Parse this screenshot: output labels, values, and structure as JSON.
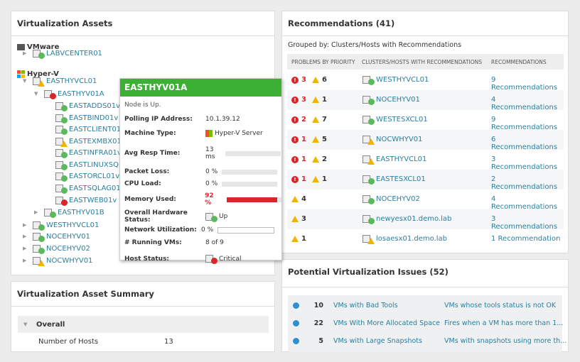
{
  "assets": {
    "title": "Virtualization Assets",
    "vmware": "VMware",
    "hyperv": "Hyper-V",
    "nodes": [
      {
        "label": "LABVCENTER01",
        "status": "up",
        "depth": 1,
        "caret": "right"
      },
      {
        "label": "EASTHYVCL01",
        "status": "warning",
        "depth": 1,
        "caret": "down"
      },
      {
        "label": "EASTHYV01A",
        "status": "critical",
        "depth": 2,
        "caret": "down"
      },
      {
        "label": "EASTADDS01v",
        "status": "up",
        "depth": 3
      },
      {
        "label": "EASTBIND01v",
        "status": "up",
        "depth": 3
      },
      {
        "label": "EASTCLIENT01v",
        "status": "up",
        "depth": 3
      },
      {
        "label": "EASTEXMBX01v",
        "status": "warning",
        "depth": 3
      },
      {
        "label": "EASTINFRA01v",
        "status": "up",
        "depth": 3
      },
      {
        "label": "EASTLINUXSQL0",
        "status": "up",
        "depth": 3
      },
      {
        "label": "EASTORCL01v",
        "status": "up",
        "depth": 3
      },
      {
        "label": "EASTSQLAG01v",
        "status": "up",
        "depth": 3
      },
      {
        "label": "EASTWEB01v",
        "status": "critical",
        "depth": 3
      },
      {
        "label": "EASTHYV01B",
        "status": "up",
        "depth": 2,
        "caret": "right"
      },
      {
        "label": "WESTHYVCL01",
        "status": "up",
        "depth": 1,
        "caret": "right"
      },
      {
        "label": "NOCEHYV01",
        "status": "up",
        "depth": 1,
        "caret": "right"
      },
      {
        "label": "NOCEHYV02",
        "status": "up",
        "depth": 1,
        "caret": "right"
      },
      {
        "label": "NOCWHYV01",
        "status": "warning",
        "depth": 1,
        "caret": "right"
      }
    ]
  },
  "tooltip": {
    "title": "EASTHYV01A",
    "status_text": "Node is Up.",
    "rows": [
      {
        "label": "Polling IP Address:",
        "value": "10.1.39.12"
      },
      {
        "label": "Machine Type:",
        "value": "Hyper-V Server"
      },
      {
        "label": "Avg Resp Time:",
        "value": "13 ms",
        "bar": 0
      },
      {
        "label": "Packet Loss:",
        "value": "0 %",
        "bar": 0
      },
      {
        "label": "CPU Load:",
        "value": "0 %",
        "bar": 0
      },
      {
        "label": "Memory Used:",
        "value": "92 %",
        "bar": 92
      },
      {
        "label": "Overall Hardware Status:",
        "value": "Up"
      },
      {
        "label": "Network Utilization:",
        "value": "0 %",
        "bar": 0
      },
      {
        "label": "# Running VMs:",
        "value": "8 of 9"
      },
      {
        "label": "Host Status:",
        "value": "Critical"
      }
    ]
  },
  "summary": {
    "title": "Virtualization Asset Summary",
    "group": "Overall",
    "rows": [
      {
        "label": "Number of Hosts",
        "value": "13"
      }
    ]
  },
  "recommendations": {
    "title": "Recommendations (41)",
    "grouped_by": "Grouped by: Clusters/Hosts with Recommendations",
    "columns": [
      "PROBLEMS BY PRIORITY",
      "CLUSTERS/HOSTS WITH RECOMMENDATIONS",
      "RECOMMENDATIONS"
    ],
    "rows": [
      {
        "critical": "3",
        "warning": "6",
        "host": "WESTHYVCL01",
        "status": "up",
        "recs": "9 Recommendations"
      },
      {
        "critical": "3",
        "warning": "1",
        "host": "NOCEHYV01",
        "status": "up",
        "recs": "4 Recommendations"
      },
      {
        "critical": "2",
        "warning": "7",
        "host": "WESTESXCL01",
        "status": "up",
        "recs": "9 Recommendations"
      },
      {
        "critical": "1",
        "warning": "5",
        "host": "NOCWHYV01",
        "status": "warning",
        "recs": "6 Recommendations"
      },
      {
        "critical": "1",
        "warning": "2",
        "host": "EASTHYVCL01",
        "status": "warning",
        "recs": "3 Recommendations"
      },
      {
        "critical": "1",
        "warning": "1",
        "host": "EASTESXCL01",
        "status": "up",
        "recs": "2 Recommendations"
      },
      {
        "critical": null,
        "warning": "4",
        "host": "NOCEHYV02",
        "status": "up",
        "recs": "4 Recommendations"
      },
      {
        "critical": null,
        "warning": "3",
        "host": "newyesx01.demo.lab",
        "status": "up",
        "recs": "3 Recommendations"
      },
      {
        "critical": null,
        "warning": "1",
        "host": "losaesx01.demo.lab",
        "status": "warning",
        "recs": "1 Recommendation"
      }
    ]
  },
  "issues": {
    "title": "Potential Virtualization Issues (52)",
    "rows": [
      {
        "count": "10",
        "name": "VMs with Bad Tools",
        "desc": "VMs whose tools status is not OK"
      },
      {
        "count": "22",
        "name": "VMs With More Allocated Space",
        "desc": "Fires when a VM has more than 1..."
      },
      {
        "count": "5",
        "name": "VMs with Large Snapshots",
        "desc": "VMs with snapshots using more th..."
      }
    ]
  },
  "colors": {
    "up": "#5cb85c",
    "critical": "#d9262b",
    "warning": "#f0b400",
    "tooltip_header": "#3cb034",
    "link": "#2a7fa0"
  }
}
